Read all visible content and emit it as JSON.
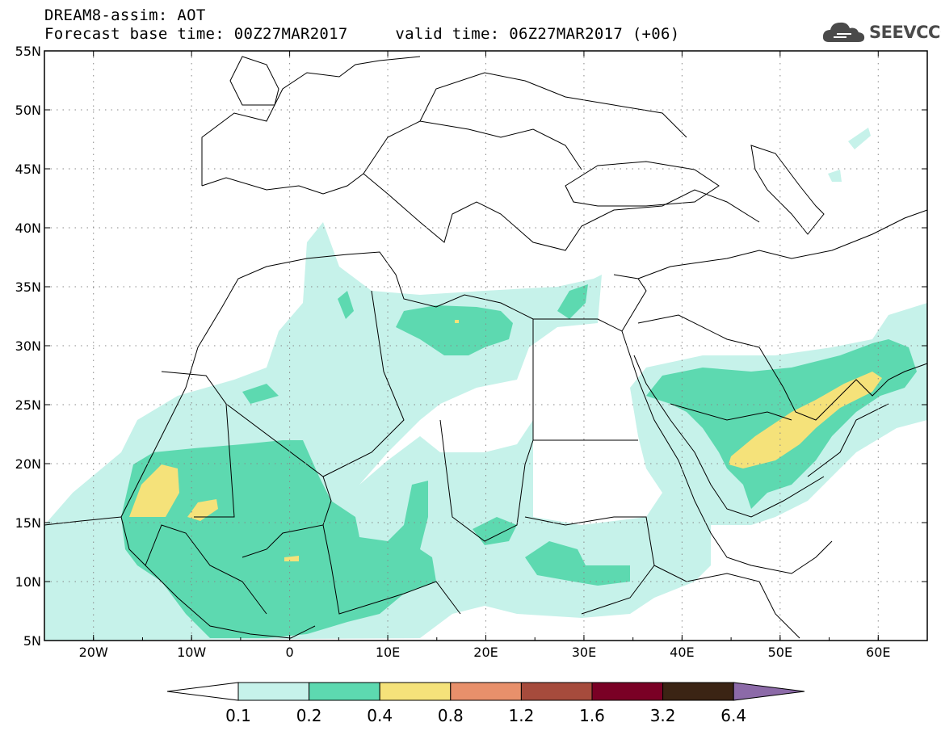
{
  "header": {
    "title": "DREAM8-assim: AOT",
    "forecast_line": "Forecast base time: 00Z27MAR2017     valid time: 06Z27MAR2017 (+06)"
  },
  "logo": {
    "text": "SEEVCCC",
    "icon": "cloud-logo-icon",
    "color": "#4a4a4a"
  },
  "map": {
    "lat_labels": [
      "55N",
      "50N",
      "45N",
      "40N",
      "35N",
      "30N",
      "25N",
      "20N",
      "15N",
      "10N",
      "5N"
    ],
    "lon_labels": [
      "20W",
      "10W",
      "0",
      "10E",
      "20E",
      "30E",
      "40E",
      "50E",
      "60E"
    ],
    "lat_range": [
      5,
      55
    ],
    "lon_range": [
      -25,
      65
    ],
    "gridlines": "dotted"
  },
  "colorbar": {
    "labels": [
      "0.1",
      "0.2",
      "0.4",
      "0.8",
      "1.2",
      "1.6",
      "3.2",
      "6.4"
    ],
    "colors": [
      "#ffffff",
      "#c6f2ea",
      "#5dd9b0",
      "#f5e27a",
      "#e8906b",
      "#a64b3c",
      "#7a0025",
      "#3b2414",
      "#8c6aa8"
    ]
  }
}
